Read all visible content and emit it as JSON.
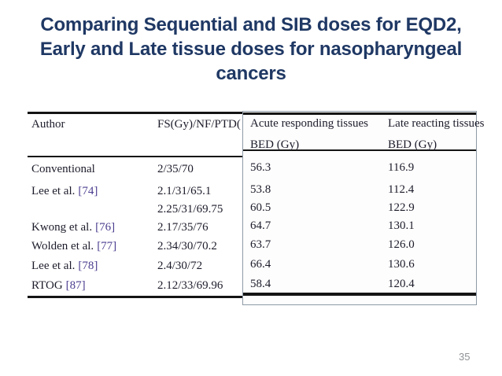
{
  "slide": {
    "title_lines": [
      "Comparing Sequential and SIB doses for EQD2,",
      "Early and Late tissue doses for nasopharyngeal",
      "cancers"
    ],
    "page_number": "35",
    "colors": {
      "title": "#1f3864",
      "citation_link": "#4b3d8f",
      "table_text": "#1c1c2b",
      "highlight_box_border": "#8e9aa6",
      "page_number": "#8f9296"
    }
  },
  "table": {
    "headers": {
      "author": "Author",
      "dose_scheme": "FS(Gy)/NF/PTD(",
      "acute": "Acute responding tissues",
      "acute_unit": "BED (Gy)",
      "late": "Late reacting tissues",
      "late_unit": "BED (Gy)"
    },
    "rows": [
      {
        "author": "Conventional",
        "citation": "",
        "fs": [
          "2/35/70"
        ],
        "acute": [
          "56.3"
        ],
        "late": [
          "116.9"
        ]
      },
      {
        "author": "Lee et al.",
        "citation": "[74]",
        "fs": [
          "2.1/31/65.1",
          "2.25/31/69.75"
        ],
        "acute": [
          "53.8",
          "60.5"
        ],
        "late": [
          "112.4",
          "122.9"
        ]
      },
      {
        "author": "Kwong et al.",
        "citation": "[76]",
        "fs": [
          "2.17/35/76"
        ],
        "acute": [
          "64.7"
        ],
        "late": [
          "130.1"
        ]
      },
      {
        "author": "Wolden et al.",
        "citation": "[77]",
        "fs": [
          "2.34/30/70.2"
        ],
        "acute": [
          "63.7"
        ],
        "late": [
          "126.0"
        ]
      },
      {
        "author": "Lee et al.",
        "citation": "[78]",
        "fs": [
          "2.4/30/72"
        ],
        "acute": [
          "66.4"
        ],
        "late": [
          "130.6"
        ]
      },
      {
        "author": "RTOG",
        "citation": "[87]",
        "fs": [
          "2.12/33/69.96"
        ],
        "acute": [
          "58.4"
        ],
        "late": [
          "120.4"
        ]
      }
    ]
  }
}
